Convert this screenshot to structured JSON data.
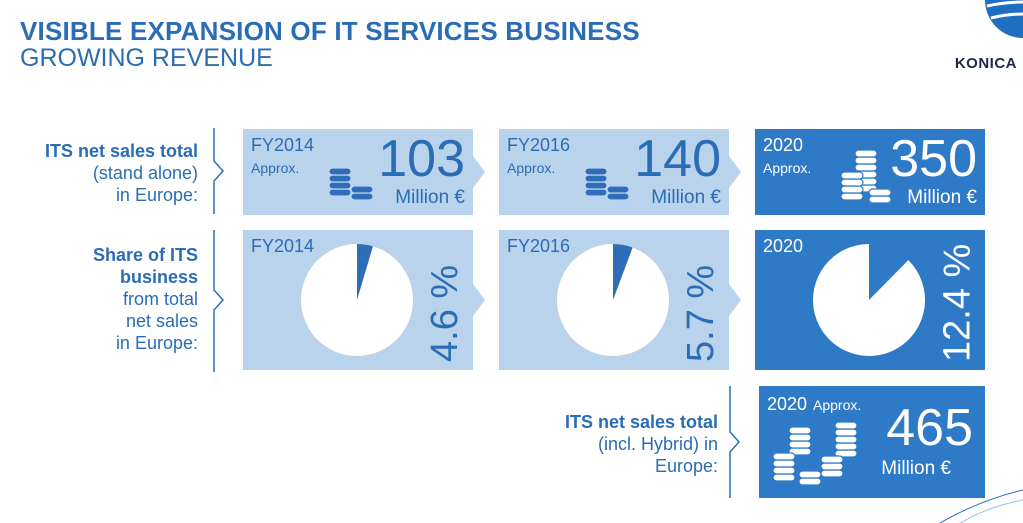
{
  "header": {
    "title": "VISIBLE EXPANSION OF IT SERVICES BUSINESS",
    "subtitle": "GROWING REVENUE",
    "logo": "KONICA"
  },
  "rows": {
    "sales": {
      "bold": "ITS net sales total",
      "rest": [
        "(stand alone)",
        "in Europe:"
      ]
    },
    "share": {
      "bold": [
        "Share of ITS",
        "business"
      ],
      "rest": [
        "from total",
        "net sales",
        "in Europe:"
      ]
    },
    "hybrid": {
      "bold": "ITS net sales total",
      "rest": [
        "(incl. Hybrid) in",
        "Europe:"
      ]
    }
  },
  "chart_data": [
    {
      "type": "table",
      "title": "ITS net sales total (stand alone) in Europe",
      "unit": "Million €",
      "entries": [
        {
          "period": "FY2014",
          "qualifier": "Approx.",
          "value": 103,
          "unit": "Million €"
        },
        {
          "period": "FY2016",
          "qualifier": "Approx.",
          "value": 140,
          "unit": "Million €"
        },
        {
          "period": "2020",
          "qualifier": "Approx.",
          "value": 350,
          "unit": "Million €"
        }
      ]
    },
    {
      "type": "pie",
      "title": "Share of ITS business from total net sales in Europe",
      "entries": [
        {
          "period": "FY2014",
          "value": 4.6,
          "label": "4.6 %"
        },
        {
          "period": "FY2016",
          "value": 5.7,
          "label": "5.7 %"
        },
        {
          "period": "2020",
          "value": 12.4,
          "label": "12.4 %"
        }
      ]
    },
    {
      "type": "table",
      "title": "ITS net sales total (incl. Hybrid) in Europe",
      "entries": [
        {
          "period": "2020",
          "qualifier": "Approx.",
          "value": 465,
          "unit": "Million €"
        }
      ]
    }
  ],
  "colors": {
    "light_card": "#b9d3ec",
    "dark_card": "#2f7ac7",
    "text_blue": "#2a6db5"
  }
}
